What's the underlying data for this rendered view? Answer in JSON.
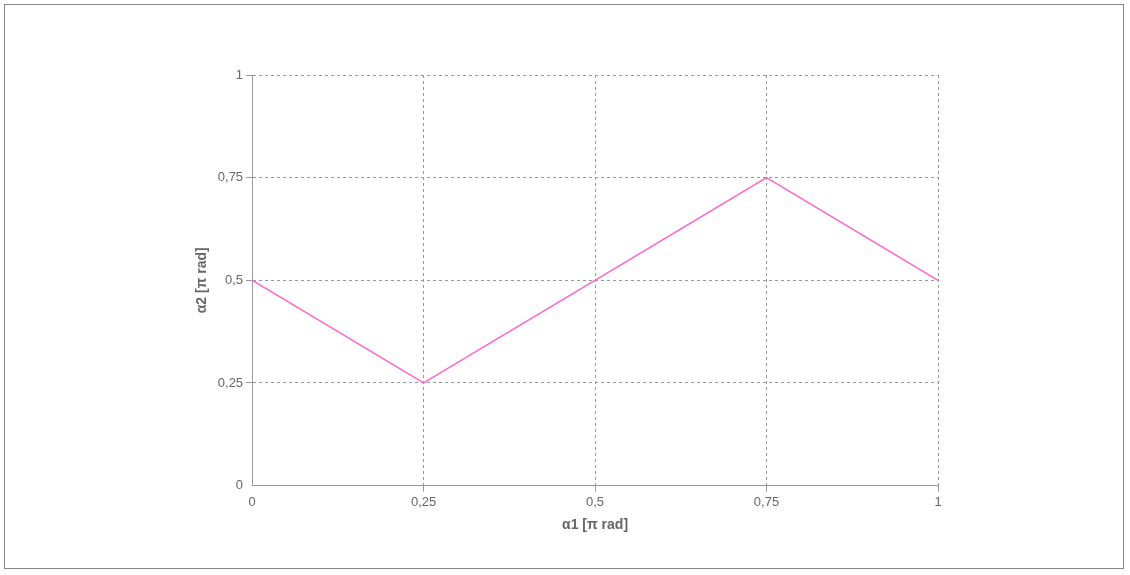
{
  "chart_data": {
    "type": "line",
    "xlabel": "α1 [π rad]",
    "ylabel": "α2 [π rad]",
    "x": [
      0,
      0.25,
      0.75,
      1
    ],
    "series": [
      {
        "color": "#ff66cc",
        "values": [
          0.5,
          0.25,
          0.75,
          0.5
        ]
      }
    ],
    "xlim": [
      0,
      1
    ],
    "ylim": [
      0,
      1
    ],
    "xticks": [
      0,
      {
        "value": 0.25,
        "label": "0,25"
      },
      {
        "value": 0.5,
        "label": "0,5"
      },
      {
        "value": 0.75,
        "label": "0,75"
      },
      1
    ],
    "yticks": [
      0,
      {
        "value": 0.25,
        "label": "0,25"
      },
      {
        "value": 0.5,
        "label": "0,5"
      },
      {
        "value": 0.75,
        "label": "0,75"
      },
      1
    ],
    "grid": true,
    "legend": false,
    "marker": "none",
    "line_style": "solid"
  }
}
